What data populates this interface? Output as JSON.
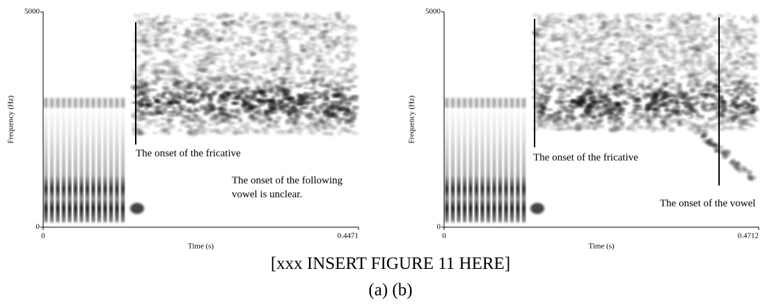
{
  "chart_data": [
    {
      "type": "spectrogram",
      "xlabel": "Time (s)",
      "ylabel": "Frequency (Hz)",
      "xlim": [
        0,
        0.4471
      ],
      "ylim": [
        0,
        5000
      ],
      "xticks": [
        0,
        0.4471
      ],
      "yticks": [
        0,
        5000
      ],
      "annotations": [
        "The onset of the fricative",
        "The onset of the following vowel is unclear."
      ]
    },
    {
      "type": "spectrogram",
      "xlabel": "Time (s)",
      "ylabel": "Frequency (Hz)",
      "xlim": [
        0,
        0.4712
      ],
      "ylim": [
        0,
        5000
      ],
      "xticks": [
        0,
        0.4712
      ],
      "yticks": [
        0,
        5000
      ],
      "annotations": [
        "The onset of the fricative",
        "The onset of the vowel"
      ]
    }
  ],
  "caption": "[xxx INSERT FIGURE 11 HERE]",
  "subcaption": "(a) (b)"
}
